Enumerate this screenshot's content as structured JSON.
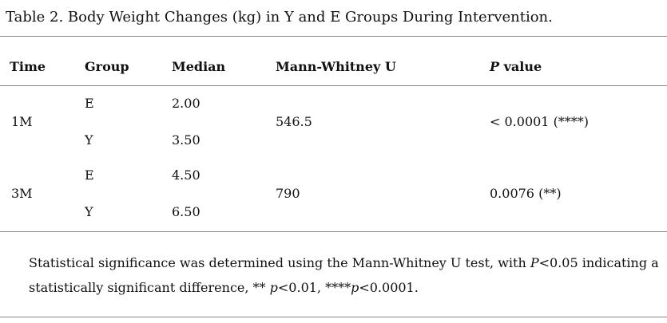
{
  "title": "Table 2. Body Weight Changes (kg) in Y and E Groups During Intervention.",
  "table": {
    "header": [
      "Time",
      "Group",
      "Median",
      "Mann-Whitney U",
      [
        "P",
        " value"
      ]
    ],
    "rows": [
      {
        "time": "1M",
        "groups": [
          "E",
          "Y"
        ],
        "medians": [
          "2.00",
          "3.50"
        ],
        "u": "546.5",
        "p": "< 0.0001 (****)"
      },
      {
        "time": "3M",
        "groups": [
          "E",
          "Y"
        ],
        "medians": [
          "4.50",
          "6.50"
        ],
        "u": "790",
        "p": "0.0076 (**)"
      }
    ]
  },
  "footnote": [
    "Statistical significance was determined using the Mann-Whitney U test, with ",
    "P",
    "<0.05 indicating a statistically significant difference, ** ",
    "p",
    "<0.01, ****",
    "p",
    "<0.0001."
  ]
}
